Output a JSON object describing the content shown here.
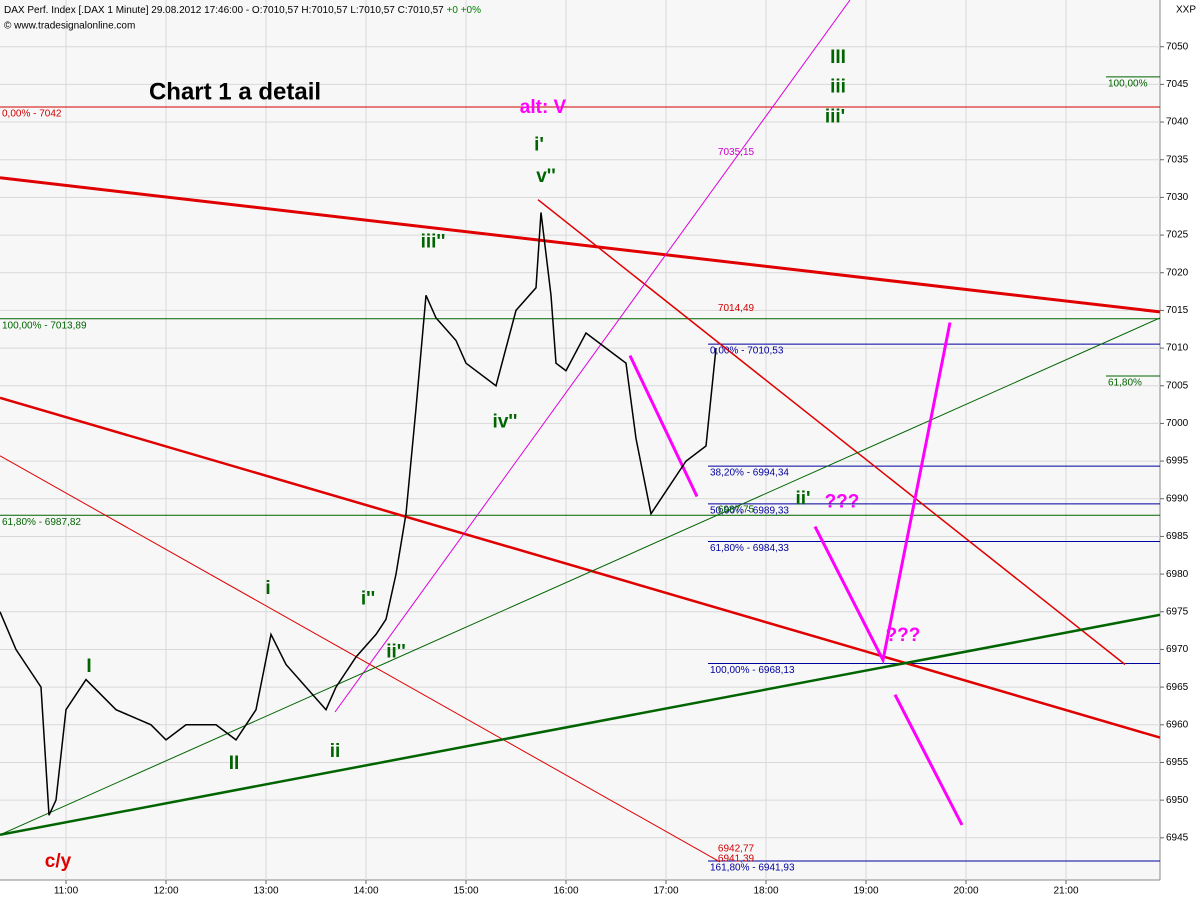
{
  "header": {
    "instrument": "DAX Perf. Index [.DAX  1 Minute] 29.08.2012 17:46:00 - O:7010,57 H:7010,57 L:7010,57 C:7010,57",
    "change": "+0 +0%",
    "copyright": "© www.tradesignalonline.com",
    "code": "XXP"
  },
  "chart_data": {
    "type": "line",
    "title": "Chart 1 a detail",
    "color": "#000000",
    "x": [
      10.34,
      10.5,
      10.75,
      10.83,
      10.9,
      11.0,
      11.2,
      11.5,
      11.85,
      12.0,
      12.2,
      12.5,
      12.7,
      12.9,
      13.05,
      13.2,
      13.4,
      13.6,
      13.7,
      13.9,
      14.1,
      14.2,
      14.3,
      14.4,
      14.5,
      14.6,
      14.7,
      14.9,
      15.0,
      15.3,
      15.5,
      15.7,
      15.75,
      15.85,
      15.9,
      16.0,
      16.2,
      16.4,
      16.6,
      16.7,
      16.85,
      17.0,
      17.2,
      17.4,
      17.5
    ],
    "values": [
      6975,
      6970,
      6965,
      6948,
      6950,
      6962,
      6966,
      6962,
      6960,
      6958,
      6960,
      6960,
      6958,
      6962,
      6972,
      6968,
      6965,
      6962,
      6965,
      6969,
      6972,
      6974,
      6980,
      6988,
      7002,
      7017,
      7014,
      7011,
      7008,
      7005,
      7015,
      7018,
      7028,
      7017,
      7008,
      7007,
      7012,
      7010,
      7008,
      6998,
      6988,
      6991,
      6995,
      6997,
      7010
    ],
    "xlim": [
      10.34,
      21.94
    ],
    "ylim": [
      6939.4,
      7056.2
    ],
    "xticks": [
      {
        "value": 11,
        "label": "11:00"
      },
      {
        "value": 12,
        "label": "12:00"
      },
      {
        "value": 13,
        "label": "13:00"
      },
      {
        "value": 14,
        "label": "14:00"
      },
      {
        "value": 15,
        "label": "15:00"
      },
      {
        "value": 16,
        "label": "16:00"
      },
      {
        "value": 17,
        "label": "17:00"
      },
      {
        "value": 18,
        "label": "18:00"
      },
      {
        "value": 19,
        "label": "19:00"
      },
      {
        "value": 20,
        "label": "20:00"
      },
      {
        "value": 21,
        "label": "21:00"
      }
    ],
    "yticks": [
      6945,
      6950,
      6955,
      6960,
      6965,
      6970,
      6975,
      6980,
      6985,
      6990,
      6995,
      7000,
      7005,
      7010,
      7015,
      7020,
      7025,
      7030,
      7035,
      7040,
      7045,
      7050
    ],
    "grid": true,
    "levels": [
      {
        "value": 7042,
        "label": "0,00% - 7042",
        "color": "#d00000",
        "x": 10.34
      },
      {
        "value": 7013.89,
        "label": "100,00% - 7013,89",
        "color": "#006400",
        "x": 10.34
      },
      {
        "value": 6987.82,
        "label": "61,80% - 6987,82",
        "color": "#006400",
        "x": 10.34
      },
      {
        "value": 7010.53,
        "label": "0,00% - 7010,53",
        "color": "#0000a0",
        "x": 17.42
      },
      {
        "value": 6994.34,
        "label": "38,20% - 6994,34",
        "color": "#0000a0",
        "x": 17.42
      },
      {
        "value": 6989.33,
        "label": "50,00% - 6989,33",
        "color": "#0000a0",
        "x": 17.42
      },
      {
        "value": 6984.33,
        "label": "61,80% - 6984,33",
        "color": "#0000a0",
        "x": 17.42
      },
      {
        "value": 6968.13,
        "label": "100,00% - 6968,13",
        "color": "#0000a0",
        "x": 17.42
      },
      {
        "value": 6941.93,
        "label": "161,80% - 6941,93",
        "color": "#0000a0",
        "x": 17.42
      },
      {
        "value": 7046,
        "label": "100,00%",
        "color": "#006400",
        "x": 21.4
      },
      {
        "value": 7006.3,
        "label": "61,80%",
        "color": "#006400",
        "x": 21.4
      }
    ],
    "price_labels": [
      {
        "value": 7035.15,
        "label": "7035,15",
        "color": "#cc00cc",
        "x": 17.7
      },
      {
        "value": 7014.49,
        "label": "7014,49",
        "color": "#d00000",
        "x": 17.7
      },
      {
        "value": 6987.75,
        "label": "6987,75",
        "color": "#006400",
        "x": 17.7
      },
      {
        "value": 6942.77,
        "label": "6942,77",
        "color": "#d00000",
        "x": 17.7
      },
      {
        "value": 6941.39,
        "label": "6941,39",
        "color": "#d00000",
        "x": 17.7
      }
    ],
    "trendlines": [
      {
        "color": "#e00000",
        "width": 3,
        "x": [
          10.34,
          21.94
        ],
        "values": [
          7032.6,
          7014.8
        ]
      },
      {
        "color": "#e00000",
        "width": 2.5,
        "x": [
          10.34,
          21.94
        ],
        "values": [
          7003.4,
          6958.3
        ]
      },
      {
        "color": "#e00000",
        "width": 1,
        "x": [
          10.34,
          17.54
        ],
        "values": [
          6995.7,
          6941.8
        ]
      },
      {
        "color": "#e00000",
        "width": 1.5,
        "x": [
          15.72,
          21.59
        ],
        "values": [
          7029.7,
          6968.0
        ]
      },
      {
        "color": "#dd00dd",
        "width": 1,
        "x": [
          13.69,
          18.84
        ],
        "values": [
          6961.7,
          7056.2
        ]
      },
      {
        "color": "#006400",
        "width": 1,
        "x": [
          10.34,
          21.94
        ],
        "values": [
          6945.4,
          7014
        ]
      },
      {
        "color": "#006400",
        "width": 2.5,
        "x": [
          10.34,
          21.94
        ],
        "values": [
          6945.4,
          6974.6
        ]
      },
      {
        "color": "#ff00ff",
        "width": 3,
        "x": [
          16.64,
          17.31
        ],
        "values": [
          7009,
          6990.3
        ]
      },
      {
        "color": "#ff00ff",
        "width": 3,
        "x": [
          18.49,
          19.17,
          19.84
        ],
        "values": [
          6986.3,
          6968.6,
          7013.4
        ]
      },
      {
        "color": "#ff00ff",
        "width": 3,
        "x": [
          19.29,
          19.96
        ],
        "values": [
          6964,
          6946.7
        ]
      }
    ],
    "annotations": [
      {
        "text": "alt: V",
        "x": 15.77,
        "y": 7041.9,
        "color": "#ff00ff"
      },
      {
        "text": "i'",
        "x": 15.73,
        "y": 7036.9,
        "color": "#006400"
      },
      {
        "text": "v''",
        "x": 15.8,
        "y": 7032.7,
        "color": "#006400"
      },
      {
        "text": "iii''",
        "x": 14.67,
        "y": 7024,
        "color": "#006400"
      },
      {
        "text": "iv''",
        "x": 15.39,
        "y": 7000.1,
        "color": "#006400"
      },
      {
        "text": "i",
        "x": 13.02,
        "y": 6978,
        "color": "#006400"
      },
      {
        "text": "i''",
        "x": 14.02,
        "y": 6976.6,
        "color": "#006400"
      },
      {
        "text": "ii''",
        "x": 14.3,
        "y": 6969.6,
        "color": "#006400"
      },
      {
        "text": "ii",
        "x": 13.69,
        "y": 6956.4,
        "color": "#006400"
      },
      {
        "text": "I",
        "x": 11.23,
        "y": 6967.7,
        "color": "#006400"
      },
      {
        "text": "II",
        "x": 12.68,
        "y": 6954.8,
        "color": "#006400"
      },
      {
        "text": "c/y",
        "x": 10.92,
        "y": 6941.8,
        "color": "#e00000"
      },
      {
        "text": "III",
        "x": 18.72,
        "y": 7048.5,
        "color": "#006400"
      },
      {
        "text": "iii",
        "x": 18.72,
        "y": 7044.6,
        "color": "#006400"
      },
      {
        "text": "iii'",
        "x": 18.69,
        "y": 7040.6,
        "color": "#006400"
      },
      {
        "text": "ii'",
        "x": 18.37,
        "y": 6989.9,
        "color": "#006400"
      },
      {
        "text": "???",
        "x": 18.76,
        "y": 6989.5,
        "color": "#ff00ff"
      },
      {
        "text": "???",
        "x": 19.37,
        "y": 6971.8,
        "color": "#ff00ff"
      }
    ]
  }
}
